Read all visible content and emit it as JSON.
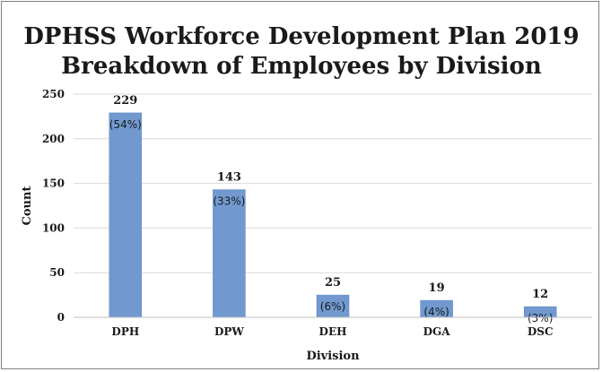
{
  "chart_data": {
    "type": "bar",
    "title": [
      "DPHSS Workforce Development Plan 2019",
      "Breakdown of Employees by Division"
    ],
    "xlabel": "Division",
    "ylabel": "Count",
    "categories": [
      "DPH",
      "DPW",
      "DEH",
      "DGA",
      "DSC"
    ],
    "values": [
      229,
      143,
      25,
      19,
      12
    ],
    "percent_labels": [
      "(54%)",
      "(33%)",
      "(6%)",
      "(4%)",
      "(3%)"
    ],
    "value_labels": [
      "229",
      "143",
      "25",
      "19",
      "12"
    ],
    "yticks": [
      0,
      50,
      100,
      150,
      200,
      250
    ],
    "ytick_labels": [
      "0",
      "50",
      "100",
      "150",
      "200",
      "250"
    ],
    "ylim": [
      0,
      250
    ],
    "grid": true,
    "legend": "none",
    "colors": {
      "bar": "#7199cf",
      "bar_edge": "#5b86c2",
      "grid": "#d9d9d9",
      "text": "#1a1a1a"
    }
  }
}
